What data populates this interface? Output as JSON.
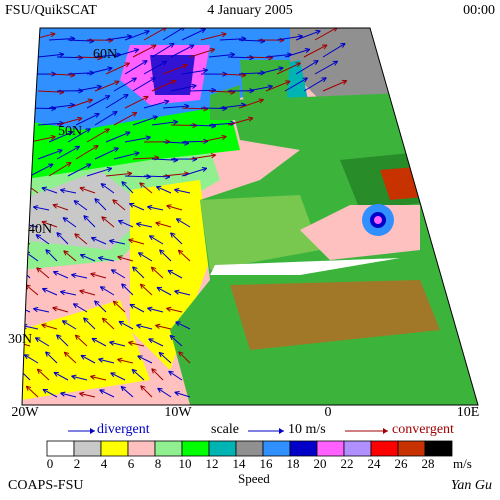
{
  "header": {
    "left": "FSU/QuikSCAT",
    "center": "4 January 2005",
    "right": "00:00"
  },
  "map": {
    "lat_labels": [
      "60N",
      "50N",
      "40N",
      "30N"
    ],
    "lon_labels": [
      "20W",
      "10W",
      "0",
      "10E"
    ]
  },
  "legend": {
    "divergent": "divergent",
    "scale": "scale",
    "scale_value": "10 m/s",
    "convergent": "convergent"
  },
  "colorbar": {
    "ticks": [
      "0",
      "2",
      "4",
      "6",
      "8",
      "10",
      "12",
      "14",
      "16",
      "18",
      "20",
      "22",
      "24",
      "26",
      "28"
    ],
    "unit": "m/s",
    "title": "Speed",
    "colors": [
      "#ffffff",
      "#c8c8c8",
      "#ffff00",
      "#ffc0c0",
      "#90f090",
      "#00ff00",
      "#00b4b4",
      "#909090",
      "#3090ff",
      "#0000c8",
      "#ff60ff",
      "#b090ff",
      "#ff0000",
      "#c83200",
      "#000000"
    ]
  },
  "footer": {
    "left": "COAPS-FSU",
    "right": "Yan Gu"
  }
}
